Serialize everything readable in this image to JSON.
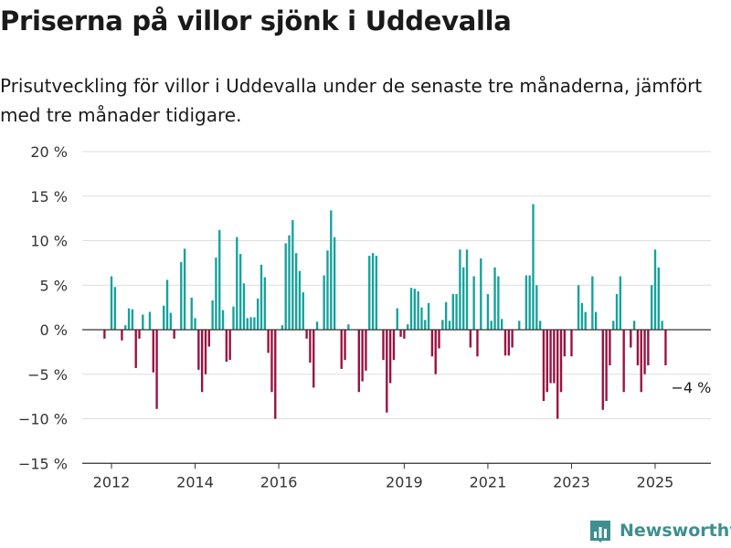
{
  "title": "Priserna på villor sjönk i Uddevalla",
  "subtitle": "Prisutveckling för villor i Uddevalla under de senaste tre månaderna, jämfört med tre månader tidigare.",
  "brand": {
    "name": "Newsworthy",
    "icon": "newsworthy-logo-icon"
  },
  "colors": {
    "positive": "#15a29b",
    "negative": "#9b0f3f",
    "grid": "#dddddd",
    "zero_line": "#333333"
  },
  "chart_data": {
    "type": "bar",
    "x_start": "2011-11",
    "x_interval": "month",
    "x_ticks": [
      "2012",
      "2014",
      "2016",
      "2019",
      "2021",
      "2023",
      "2025"
    ],
    "x_tick_dates": [
      "2012-01",
      "2014-01",
      "2016-01",
      "2019-01",
      "2021-01",
      "2023-01",
      "2025-01"
    ],
    "y_ticks": [
      20,
      15,
      10,
      5,
      0,
      -5,
      -10,
      -15
    ],
    "y_tick_labels": [
      "20 %",
      "15 %",
      "10 %",
      "5 %",
      "0 %",
      "−5 %",
      "−10 %",
      "−15 %"
    ],
    "ylim": [
      -15,
      20
    ],
    "xlabel": "",
    "ylabel": "",
    "grid": true,
    "annotation": {
      "text": "−4 %",
      "value": -4
    },
    "values": [
      -1,
      0,
      6,
      4.8,
      0,
      -1.2,
      0.5,
      2.4,
      2.3,
      -4.3,
      -1,
      1.7,
      0,
      2,
      -4.8,
      -8.9,
      0,
      2.7,
      5.6,
      1.9,
      -1,
      0,
      7.6,
      9.1,
      0,
      3.6,
      1.3,
      -4.5,
      -7,
      -5,
      -1.9,
      3.3,
      8.1,
      11.2,
      2.2,
      -3.6,
      -3.4,
      2.6,
      10.4,
      8.5,
      5.2,
      1.3,
      1.4,
      1.4,
      3.5,
      7.3,
      5.9,
      -2.6,
      -7,
      -10,
      0,
      0.5,
      9.7,
      10.6,
      12.3,
      8.6,
      6.6,
      4.2,
      -1,
      -3.7,
      -6.5,
      0.9,
      0,
      6.1,
      8.9,
      13.4,
      10.4,
      0,
      -4.4,
      -3.4,
      0.6,
      0,
      0,
      -7,
      -5.8,
      -4.6,
      8.3,
      8.6,
      8.3,
      0,
      -3.4,
      -9.3,
      -6,
      -3.4,
      2.4,
      -0.8,
      -1,
      0.6,
      4.7,
      4.6,
      4.3,
      2.5,
      1.1,
      3,
      -3,
      -5,
      -2.1,
      1.1,
      3.1,
      1,
      4,
      4,
      9,
      7,
      9,
      -2,
      6,
      -3,
      8,
      0,
      4,
      1,
      7,
      6,
      1.2,
      -2.9,
      -2.9,
      -2,
      0,
      1,
      0,
      6.1,
      6.1,
      14.1,
      5,
      1,
      -8,
      -7,
      -6,
      -6,
      -10,
      -7,
      -3,
      0,
      -3,
      0,
      5,
      3,
      2,
      0,
      6,
      2,
      0,
      -9,
      -8,
      -4,
      1,
      4,
      6,
      -7,
      0,
      -2,
      1,
      -4,
      -7,
      -5,
      -4,
      5,
      9,
      7,
      1,
      -4
    ]
  }
}
